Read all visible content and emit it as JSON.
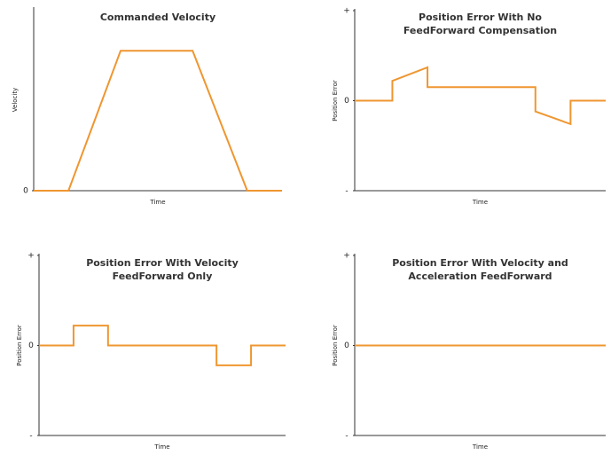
{
  "chart_data": [
    {
      "type": "line",
      "title": [
        "Commanded Velocity"
      ],
      "xlabel": "Time",
      "ylabel": "Velocity",
      "x": [
        0,
        1.4,
        3.5,
        6.4,
        8.6,
        10
      ],
      "values": [
        0,
        0,
        1,
        1,
        0,
        0
      ],
      "xlim": [
        0,
        10
      ],
      "ylim": [
        0,
        1.3
      ],
      "yticks": [
        0
      ],
      "color": "#ef9630",
      "grid": false
    },
    {
      "type": "line",
      "title": [
        "Position Error With No",
        "FeedForward Compensation"
      ],
      "xlabel": "Time",
      "ylabel": "Position Error",
      "x": [
        0,
        1.5,
        1.5,
        2.9,
        2.9,
        7.2,
        7.2,
        8.6,
        8.6,
        10
      ],
      "values": [
        0,
        0,
        0.22,
        0.37,
        0.15,
        0.15,
        -0.12,
        -0.26,
        0,
        0
      ],
      "xlim": [
        0,
        10
      ],
      "ylim": [
        -1,
        1
      ],
      "yticks": [
        {
          "value": 1,
          "label": "+"
        },
        0,
        {
          "value": -1,
          "label": "-"
        }
      ],
      "color": "#ef9630",
      "grid": false
    },
    {
      "type": "line",
      "title": [
        "Position Error With Velocity",
        "FeedForward Only"
      ],
      "xlabel": "Time",
      "ylabel": "Position Error",
      "x": [
        0,
        1.4,
        1.4,
        2.8,
        2.8,
        7.2,
        7.2,
        8.6,
        8.6,
        10
      ],
      "values": [
        0,
        0,
        0.22,
        0.22,
        0,
        0,
        -0.22,
        -0.22,
        0,
        0
      ],
      "xlim": [
        0,
        10
      ],
      "ylim": [
        -1,
        1
      ],
      "yticks": [
        {
          "value": 1,
          "label": "+"
        },
        0,
        {
          "value": -1,
          "label": "-"
        }
      ],
      "color": "#ef9630",
      "grid": false
    },
    {
      "type": "line",
      "title": [
        "Position Error With Velocity and",
        "Acceleration FeedForward"
      ],
      "xlabel": "Time",
      "ylabel": "Position Error",
      "x": [
        0,
        10
      ],
      "values": [
        0,
        0
      ],
      "xlim": [
        0,
        10
      ],
      "ylim": [
        -1,
        1
      ],
      "yticks": [
        {
          "value": 1,
          "label": "+"
        },
        0,
        {
          "value": -1,
          "label": "-"
        }
      ],
      "color": "#ef9630",
      "grid": false
    }
  ]
}
